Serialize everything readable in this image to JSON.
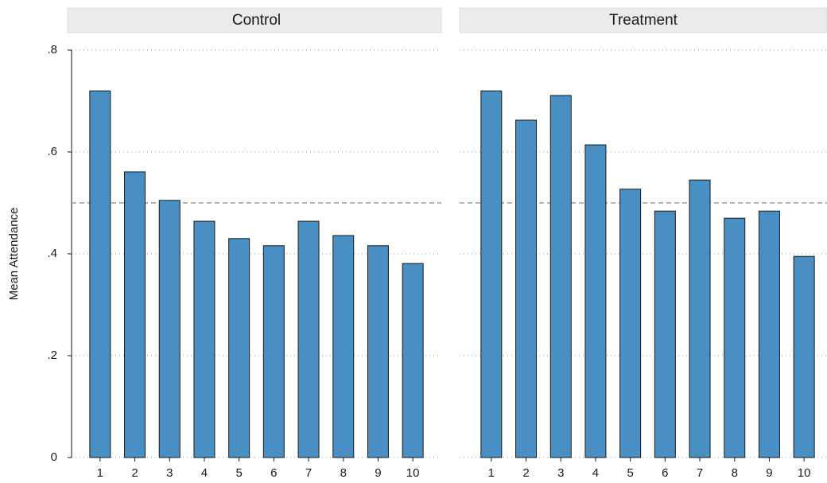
{
  "chart_data": [
    {
      "type": "bar",
      "title": "Control",
      "y_label": "Mean Attendance",
      "categories": [
        "1",
        "2",
        "3",
        "4",
        "5",
        "6",
        "7",
        "8",
        "9",
        "10"
      ],
      "values": [
        0.72,
        0.561,
        0.505,
        0.464,
        0.43,
        0.416,
        0.464,
        0.436,
        0.416,
        0.381
      ],
      "color": "#4a8fc4",
      "ylim": [
        0,
        0.8
      ],
      "yticks": [
        0,
        {
          "value": 0.2,
          "label": ".2"
        },
        {
          "value": 0.4,
          "label": ".4"
        },
        {
          "value": 0.6,
          "label": ".6"
        },
        {
          "value": 0.8,
          "label": ".8"
        }
      ],
      "grid": true,
      "hline": 0.5
    },
    {
      "type": "bar",
      "title": "Treatment",
      "categories": [
        "1",
        "2",
        "3",
        "4",
        "5",
        "6",
        "7",
        "8",
        "9",
        "10"
      ],
      "values": [
        0.72,
        0.6625,
        0.711,
        0.614,
        0.527,
        0.484,
        0.545,
        0.47,
        0.484,
        0.395
      ],
      "color": "#4a8fc4",
      "ylim": [
        0,
        0.8
      ],
      "yticks": [
        0,
        {
          "value": 0.2,
          "label": ".2"
        },
        {
          "value": 0.4,
          "label": ".4"
        },
        {
          "value": 0.6,
          "label": ".6"
        },
        {
          "value": 0.8,
          "label": ".8"
        }
      ],
      "grid": true,
      "hline": 0.5
    }
  ]
}
